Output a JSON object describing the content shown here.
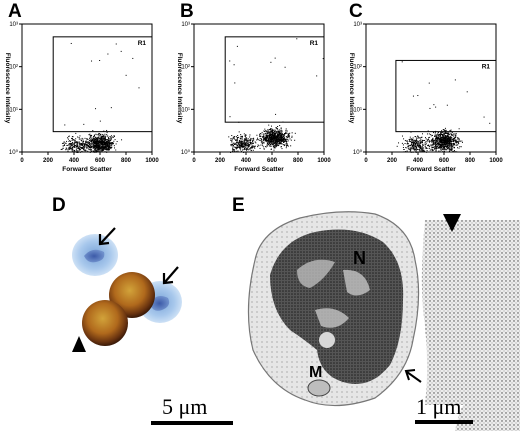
{
  "panels": {
    "A": {
      "letter": "A"
    },
    "B": {
      "letter": "B"
    },
    "C": {
      "letter": "C"
    },
    "D": {
      "letter": "D"
    },
    "E": {
      "letter": "E"
    }
  },
  "flow": {
    "x_label": "Forward Scatter",
    "y_label": "Fluorescence Intensity",
    "gate_label": "R1",
    "x_ticks": [
      "0",
      "200",
      "400",
      "600",
      "800",
      "1000"
    ],
    "y_ticks": [
      "10⁰",
      "10¹",
      "10²",
      "10³"
    ]
  },
  "chart_data": [
    {
      "type": "scatter",
      "title": "",
      "xlabel": "Forward Scatter",
      "ylabel": "Fluorescence Intensity",
      "xlim": [
        0,
        1000
      ],
      "ylim": [
        1,
        1000
      ],
      "y_scale": "log",
      "gate": {
        "name": "R1",
        "x": [
          240,
          1000
        ],
        "y": [
          3,
          500
        ]
      },
      "clusters": [
        {
          "x_center": 600,
          "y_center": 1.6,
          "count": 700
        },
        {
          "x_center": 420,
          "y_center": 1.4,
          "count": 250
        }
      ]
    },
    {
      "type": "scatter",
      "title": "",
      "xlabel": "Forward Scatter",
      "ylabel": "Fluorescence Intensity",
      "xlim": [
        0,
        1000
      ],
      "ylim": [
        1,
        1000
      ],
      "y_scale": "log",
      "gate": {
        "name": "R1",
        "x": [
          240,
          1000
        ],
        "y": [
          5,
          500
        ]
      },
      "clusters": [
        {
          "x_center": 620,
          "y_center": 2.2,
          "count": 700
        },
        {
          "x_center": 380,
          "y_center": 1.6,
          "count": 300
        }
      ]
    },
    {
      "type": "scatter",
      "title": "",
      "xlabel": "Forward Scatter",
      "ylabel": "Fluorescence Intensity",
      "xlim": [
        0,
        1000
      ],
      "ylim": [
        1,
        1000
      ],
      "y_scale": "log",
      "gate": {
        "name": "R1",
        "x": [
          230,
          1000
        ],
        "y": [
          3,
          140
        ]
      },
      "clusters": [
        {
          "x_center": 600,
          "y_center": 1.8,
          "count": 700
        },
        {
          "x_center": 380,
          "y_center": 1.5,
          "count": 250
        }
      ]
    }
  ],
  "micrograph_d": {
    "scale_label": "5 μm"
  },
  "micrograph_e": {
    "label_n": "N",
    "label_m": "M",
    "scale_label": "1 μm"
  }
}
